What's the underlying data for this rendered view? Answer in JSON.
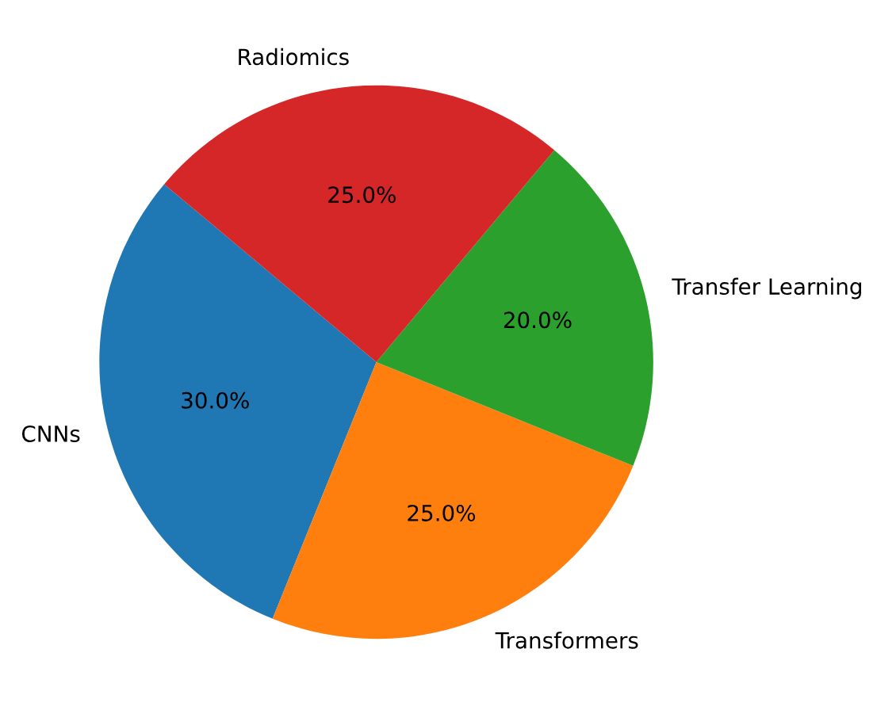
{
  "chart_data": {
    "type": "pie",
    "categories": [
      "CNNs",
      "Transformers",
      "Transfer Learning",
      "Radiomics"
    ],
    "values": [
      30,
      25,
      20,
      25
    ],
    "colors": [
      "#1f77b4",
      "#ff7f0e",
      "#2ca02c",
      "#d62728"
    ],
    "value_labels": [
      "30.0%",
      "25.0%",
      "20.0%",
      "25.0%"
    ]
  }
}
